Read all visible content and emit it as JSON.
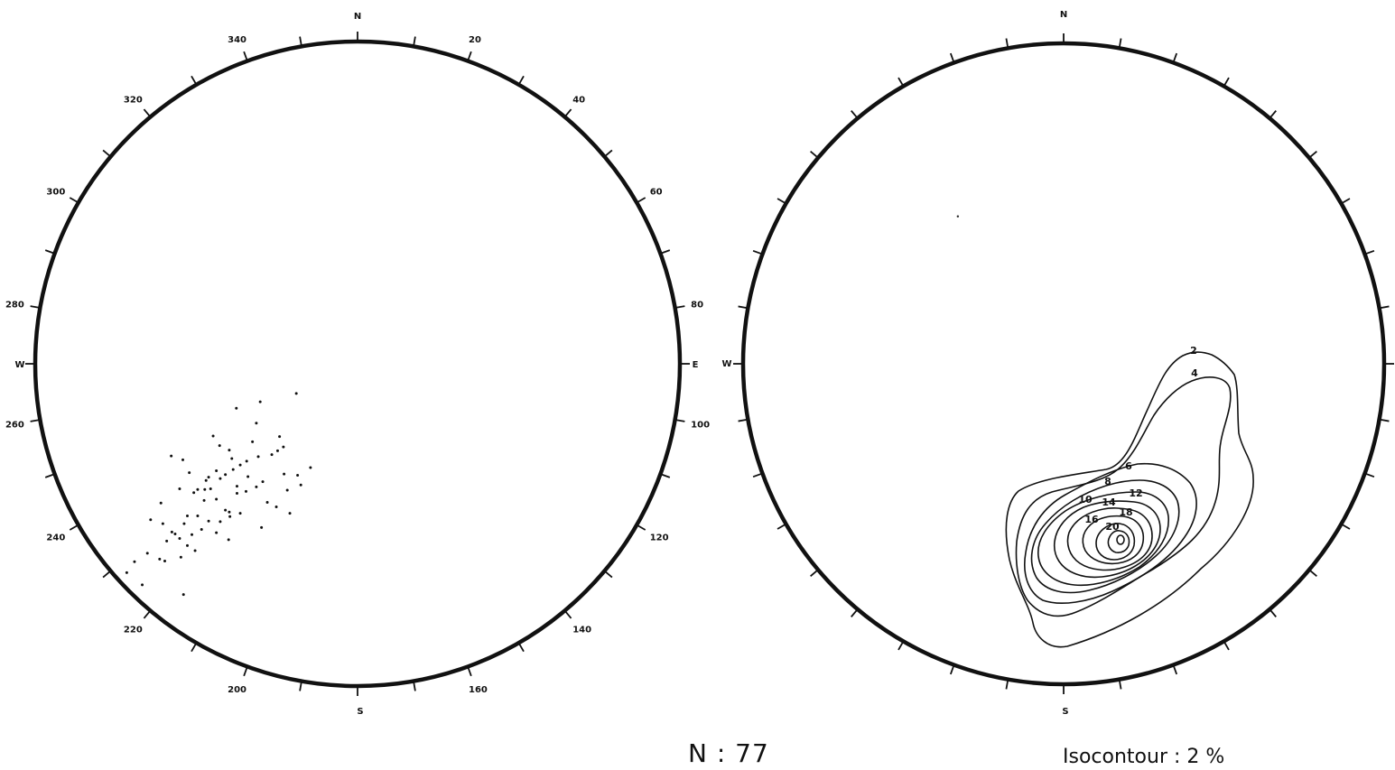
{
  "left_net": {
    "cardinal_labels": {
      "north": "N",
      "south": "S",
      "west": "W",
      "east": "E"
    },
    "degree_labels": [
      "20",
      "40",
      "60",
      "80",
      "100",
      "120",
      "140",
      "160",
      "200",
      "220",
      "240",
      "260",
      "280",
      "300",
      "320",
      "340"
    ],
    "degree_label_azimuths": [
      20,
      40,
      60,
      80,
      100,
      120,
      140,
      160,
      200,
      220,
      240,
      260,
      280,
      300,
      320,
      340
    ],
    "tick_interval_deg": 10,
    "points_style": {
      "color": "#111111"
    },
    "points": [
      [
        0.349,
        0.559
      ],
      [
        0.405,
        0.546
      ],
      [
        0.427,
        0.661
      ],
      [
        0.407,
        0.673
      ],
      [
        0.391,
        0.696
      ],
      [
        0.379,
        0.613
      ],
      [
        0.385,
        0.629
      ],
      [
        0.376,
        0.635
      ],
      [
        0.367,
        0.641
      ],
      [
        0.386,
        0.671
      ],
      [
        0.211,
        0.643
      ],
      [
        0.229,
        0.649
      ],
      [
        0.252,
        0.736
      ],
      [
        0.269,
        0.744
      ],
      [
        0.239,
        0.669
      ],
      [
        0.301,
        0.634
      ],
      [
        0.286,
        0.627
      ],
      [
        0.305,
        0.647
      ],
      [
        0.313,
        0.701
      ],
      [
        0.265,
        0.681
      ],
      [
        0.318,
        0.657
      ],
      [
        0.276,
        0.612
      ],
      [
        0.346,
        0.644
      ],
      [
        0.343,
        0.592
      ],
      [
        0.337,
        0.621
      ],
      [
        0.328,
        0.651
      ],
      [
        0.295,
        0.672
      ],
      [
        0.327,
        0.698
      ],
      [
        0.312,
        0.569
      ],
      [
        0.262,
        0.712
      ],
      [
        0.302,
        0.737
      ],
      [
        0.301,
        0.73
      ],
      [
        0.295,
        0.727
      ],
      [
        0.287,
        0.745
      ],
      [
        0.281,
        0.762
      ],
      [
        0.243,
        0.765
      ],
      [
        0.236,
        0.736
      ],
      [
        0.231,
        0.748
      ],
      [
        0.217,
        0.764
      ],
      [
        0.204,
        0.775
      ],
      [
        0.23,
        0.858
      ],
      [
        0.3,
        0.773
      ],
      [
        0.36,
        0.715
      ],
      [
        0.374,
        0.722
      ],
      [
        0.395,
        0.732
      ],
      [
        0.412,
        0.688
      ],
      [
        0.351,
        0.754
      ],
      [
        0.318,
        0.732
      ],
      [
        0.281,
        0.71
      ],
      [
        0.246,
        0.7
      ],
      [
        0.263,
        0.695
      ],
      [
        0.252,
        0.695
      ],
      [
        0.272,
        0.694
      ],
      [
        0.287,
        0.678
      ],
      [
        0.307,
        0.664
      ],
      [
        0.193,
        0.803
      ],
      [
        0.166,
        0.843
      ],
      [
        0.154,
        0.807
      ],
      [
        0.142,
        0.824
      ],
      [
        0.174,
        0.794
      ],
      [
        0.258,
        0.757
      ],
      [
        0.343,
        0.691
      ],
      [
        0.353,
        0.683
      ],
      [
        0.313,
        0.69
      ],
      [
        0.33,
        0.675
      ],
      [
        0.269,
        0.676
      ],
      [
        0.281,
        0.666
      ],
      [
        0.224,
        0.694
      ],
      [
        0.195,
        0.716
      ],
      [
        0.179,
        0.742
      ],
      [
        0.198,
        0.748
      ],
      [
        0.212,
        0.761
      ],
      [
        0.224,
        0.771
      ],
      [
        0.236,
        0.782
      ],
      [
        0.248,
        0.79
      ],
      [
        0.226,
        0.8
      ],
      [
        0.201,
        0.806
      ]
    ]
  },
  "right_net": {
    "cardinal_labels": {
      "north": "N",
      "south": "S",
      "west": "W"
    },
    "tick_interval_deg": 10,
    "contour_labels": [
      "2",
      "4",
      "6",
      "8",
      "10",
      "12",
      "14",
      "16",
      "18",
      "20"
    ],
    "isolated_point": [
      0.335,
      0.27
    ]
  },
  "count_label": "N : 77",
  "isocontour_label": "Isocontour : 2 %"
}
